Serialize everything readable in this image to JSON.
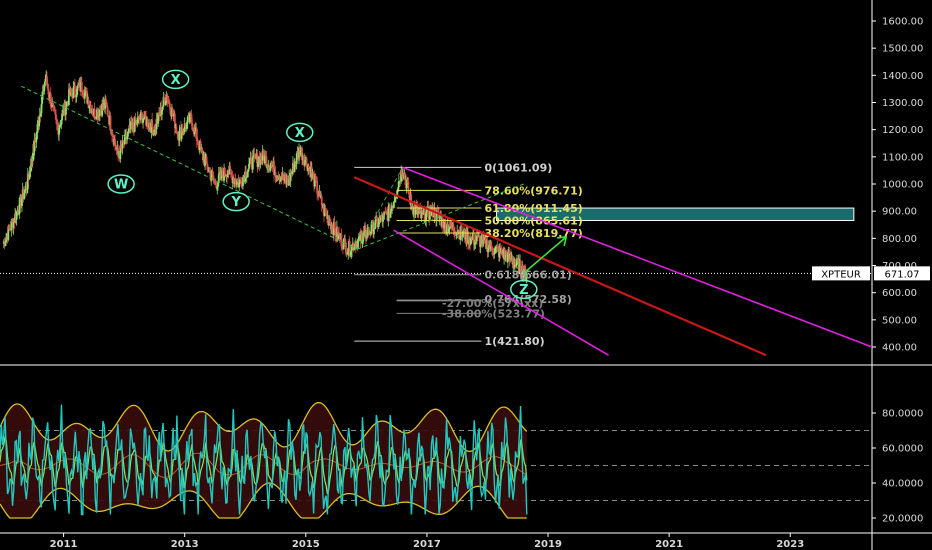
{
  "chart_data": [
    {
      "type": "line",
      "symbol": "XPTEUR",
      "last_price": "671.07",
      "y_ticks": [
        "1600.00",
        "1500.00",
        "1400.00",
        "1300.00",
        "1200.00",
        "1100.00",
        "1000.00",
        "900.00",
        "800.00",
        "700.00",
        "600.00",
        "500.00",
        "400.00"
      ],
      "ylim": [
        370,
        1655
      ],
      "x_ticks": [
        "2011",
        "2013",
        "2015",
        "2017",
        "2019",
        "2021",
        "2023"
      ],
      "xlim": [
        2009.95,
        2024.35
      ],
      "series": [
        {
          "x": [
            2010.0,
            2010.2,
            2010.4,
            2010.55,
            2010.7,
            2010.9,
            2011.1,
            2011.3,
            2011.5,
            2011.7,
            2011.9,
            2012.1,
            2012.3,
            2012.5,
            2012.7,
            2012.9,
            2013.1,
            2013.3,
            2013.5,
            2013.7,
            2013.9,
            2014.1,
            2014.3,
            2014.5,
            2014.7,
            2014.9,
            2015.1,
            2015.3,
            2015.5,
            2015.7,
            2015.9,
            2016.0,
            2016.2,
            2016.4,
            2016.6,
            2016.75,
            2016.9,
            2017.1,
            2017.3,
            2017.5,
            2017.7,
            2017.9,
            2018.1,
            2018.3,
            2018.5,
            2018.65
          ],
          "values": [
            780,
            880,
            1000,
            1180,
            1390,
            1200,
            1330,
            1360,
            1260,
            1290,
            1100,
            1200,
            1250,
            1200,
            1330,
            1180,
            1240,
            1100,
            1000,
            1050,
            1000,
            1080,
            1100,
            1050,
            1000,
            1130,
            1040,
            900,
            820,
            760,
            800,
            820,
            860,
            900,
            1061,
            920,
            880,
            900,
            850,
            830,
            800,
            790,
            760,
            740,
            700,
            666
          ]
        }
      ],
      "wave_labels": [
        {
          "text": "X",
          "x": 2012.85,
          "y": 1385
        },
        {
          "text": "W",
          "x": 2011.95,
          "y": 1000
        },
        {
          "text": "Y",
          "x": 2013.85,
          "y": 935
        },
        {
          "text": "X",
          "x": 2014.9,
          "y": 1190
        },
        {
          "text": "Z",
          "x": 2018.6,
          "y": 612
        }
      ],
      "fib_levels": [
        {
          "label": "0(1061.09)",
          "value": 1061.09,
          "color": "#d0d0d0",
          "x0": 2015.8
        },
        {
          "label": "78.60%(976.71)",
          "value": 976.71,
          "color": "#e8e060",
          "x0": 2016.5
        },
        {
          "label": "61.80%(911.45)",
          "value": 911.45,
          "color": "#e8e060",
          "x0": 2016.5
        },
        {
          "label": "50.00%(865.61)",
          "value": 865.61,
          "color": "#e8e060",
          "x0": 2016.5
        },
        {
          "label": "38.20%(819.77)",
          "value": 819.77,
          "color": "#e8e060",
          "x0": 2016.5
        },
        {
          "label": "0.618(666.01)",
          "value": 666.01,
          "color": "#a0a0a0",
          "x0": 2015.8
        },
        {
          "label": "0.764(572.58)",
          "value": 572.58,
          "color": "#a0a0a0",
          "x0": 2016.5
        },
        {
          "label": "-27.00%(57x.xx)",
          "value": 570,
          "color": "#808080",
          "x0": 2016.5
        },
        {
          "label": "-38.00%(523.77)",
          "value": 523.77,
          "color": "#808080",
          "x0": 2016.5
        },
        {
          "label": "1(421.80)",
          "value": 421.8,
          "color": "#d0d0d0",
          "x0": 2015.8
        }
      ],
      "target_zone": {
        "x0": 2018.15,
        "x1": 2024.05,
        "y0": 865.61,
        "y1": 911.45,
        "color": "#1a6b6b"
      }
    },
    {
      "type": "line",
      "indicator": "oscillator",
      "y_ticks": [
        "80.0000",
        "60.0000",
        "40.0000",
        "20.0000"
      ],
      "ylim": [
        12,
        98
      ],
      "reference_lines": [
        70,
        50,
        30
      ],
      "colors": {
        "main": "#20c8c0",
        "signal": "#80e060",
        "band": "#d8c020",
        "fill": "#3a0c0c"
      }
    }
  ]
}
